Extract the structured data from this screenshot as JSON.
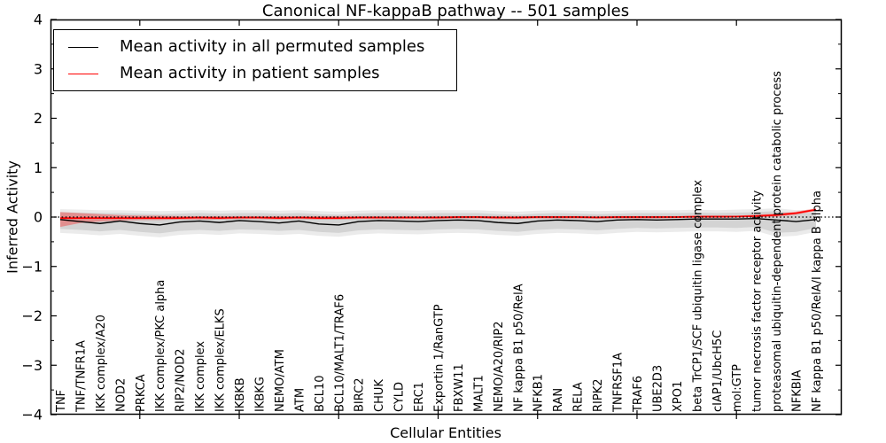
{
  "figure": {
    "title": "Canonical NF-kappaB pathway -- 501 samples",
    "xlabel": "Cellular Entities",
    "ylabel": "Inferred Activity"
  },
  "chart_data": {
    "type": "line",
    "title": "Canonical NF-kappaB pathway -- 501 samples",
    "xlabel": "Cellular Entities",
    "ylabel": "Inferred Activity",
    "ylim": [
      -4,
      4
    ],
    "yticks": [
      -4,
      -3,
      -2,
      -1,
      0,
      1,
      2,
      3,
      4
    ],
    "ytick_labels": [
      "−4",
      "−3",
      "−2",
      "−1",
      "0",
      "1",
      "2",
      "3",
      "4"
    ],
    "ytick_minor_step": 0.5,
    "xtick_indices": [
      4,
      9,
      14,
      19,
      24,
      29,
      34
    ],
    "grid": false,
    "legend_position": "upper left",
    "zero_line": {
      "y": 0,
      "style": "dotted",
      "color": "#000000"
    },
    "categories": [
      "TNF",
      "TNF/TNFR1A",
      "IKK complex/A20",
      "NOD2",
      "PRKCA",
      "IKK complex/PKC alpha",
      "RIP2/NOD2",
      "IKK complex",
      "IKK complex/ELKS",
      "IKBKB",
      "IKBKG",
      "NEMO/ATM",
      "ATM",
      "BCL10",
      "BCL10/MALT1/TRAF6",
      "BIRC2",
      "CHUK",
      "CYLD",
      "ERC1",
      "Exportin 1/RanGTP",
      "FBXW11",
      "MALT1",
      "NEMO/A20/RIP2",
      "NF kappa B1 p50/RelA",
      "NFKB1",
      "RAN",
      "RELA",
      "RIPK2",
      "TNFRSF1A",
      "TRAF6",
      "UBE2D3",
      "XPO1",
      "beta TrCP1/SCF ubiquitin ligase complex",
      "cIAP1/UbcH5C",
      "mol:GTP",
      "tumor necrosis factor receptor activity",
      "proteasomal ubiquitin-dependent protein catabolic process",
      "NFKBIA",
      "NF kappa B1 p50/RelA/I kappa B alpha"
    ],
    "series": [
      {
        "name": "Mean activity in all permuted samples",
        "color": "#000000",
        "values": [
          -0.05,
          -0.09,
          -0.13,
          -0.08,
          -0.13,
          -0.16,
          -0.1,
          -0.08,
          -0.11,
          -0.07,
          -0.09,
          -0.12,
          -0.08,
          -0.14,
          -0.16,
          -0.09,
          -0.07,
          -0.08,
          -0.09,
          -0.07,
          -0.06,
          -0.07,
          -0.11,
          -0.13,
          -0.08,
          -0.06,
          -0.07,
          -0.09,
          -0.06,
          -0.05,
          -0.06,
          -0.05,
          -0.04,
          -0.04,
          -0.04,
          -0.03,
          -0.06,
          -0.09,
          -0.05
        ]
      },
      {
        "name": "Mean activity in patient samples",
        "color": "#ff0000",
        "values": [
          -0.02,
          -0.02,
          -0.02,
          -0.02,
          -0.02,
          -0.02,
          -0.02,
          -0.01,
          -0.02,
          -0.01,
          -0.01,
          -0.02,
          -0.01,
          -0.02,
          -0.02,
          -0.01,
          -0.01,
          -0.01,
          -0.01,
          -0.01,
          0.0,
          0.0,
          -0.01,
          -0.01,
          0.0,
          0.0,
          0.0,
          -0.01,
          0.0,
          0.0,
          0.0,
          0.0,
          0.01,
          0.01,
          0.01,
          0.02,
          0.04,
          0.08,
          0.15
        ]
      }
    ],
    "bands": [
      {
        "name": "permuted-confidence-band-outer",
        "color": "rgba(0,0,0,0.08)",
        "upper": [
          0.16,
          0.15,
          0.14,
          0.14,
          0.13,
          0.12,
          0.13,
          0.14,
          0.13,
          0.14,
          0.14,
          0.13,
          0.14,
          0.12,
          0.11,
          0.13,
          0.14,
          0.14,
          0.13,
          0.14,
          0.14,
          0.14,
          0.12,
          0.11,
          0.13,
          0.14,
          0.13,
          0.12,
          0.13,
          0.14,
          0.14,
          0.14,
          0.15,
          0.14,
          0.15,
          0.16,
          0.18,
          0.14,
          0.15
        ],
        "lower": [
          -0.32,
          -0.34,
          -0.37,
          -0.34,
          -0.38,
          -0.41,
          -0.36,
          -0.34,
          -0.36,
          -0.33,
          -0.34,
          -0.36,
          -0.34,
          -0.38,
          -0.4,
          -0.35,
          -0.33,
          -0.34,
          -0.35,
          -0.33,
          -0.32,
          -0.33,
          -0.36,
          -0.38,
          -0.34,
          -0.32,
          -0.33,
          -0.35,
          -0.32,
          -0.3,
          -0.31,
          -0.3,
          -0.29,
          -0.29,
          -0.3,
          -0.28,
          -0.4,
          -0.38,
          -0.3
        ]
      },
      {
        "name": "permuted-confidence-band",
        "color": "rgba(0,0,0,0.10)",
        "upper": [
          0.1,
          0.09,
          0.08,
          0.08,
          0.07,
          0.06,
          0.07,
          0.08,
          0.07,
          0.08,
          0.08,
          0.07,
          0.08,
          0.06,
          0.05,
          0.07,
          0.08,
          0.08,
          0.07,
          0.08,
          0.08,
          0.08,
          0.06,
          0.05,
          0.07,
          0.08,
          0.07,
          0.06,
          0.07,
          0.08,
          0.08,
          0.08,
          0.09,
          0.08,
          0.09,
          0.1,
          0.12,
          0.08,
          0.09
        ],
        "lower": [
          -0.24,
          -0.26,
          -0.29,
          -0.26,
          -0.3,
          -0.33,
          -0.28,
          -0.26,
          -0.28,
          -0.25,
          -0.26,
          -0.28,
          -0.26,
          -0.3,
          -0.32,
          -0.27,
          -0.25,
          -0.26,
          -0.27,
          -0.25,
          -0.24,
          -0.25,
          -0.28,
          -0.3,
          -0.26,
          -0.24,
          -0.25,
          -0.27,
          -0.24,
          -0.22,
          -0.23,
          -0.22,
          -0.21,
          -0.21,
          -0.22,
          -0.2,
          -0.32,
          -0.3,
          -0.22
        ]
      },
      {
        "name": "patient-confidence-band",
        "color": "rgba(255,0,0,0.32)",
        "upper": [
          0.1,
          0.08,
          0.06,
          0.04,
          0.03,
          0.03,
          0.02,
          0.02,
          0.02,
          0.02,
          0.02,
          0.02,
          0.02,
          0.02,
          0.02,
          0.02,
          0.02,
          0.02,
          0.02,
          0.02,
          0.02,
          0.02,
          0.02,
          0.02,
          0.02,
          0.02,
          0.02,
          0.02,
          0.02,
          0.02,
          0.02,
          0.02,
          0.03,
          0.03,
          0.03,
          0.05,
          0.07,
          0.11,
          0.18
        ],
        "lower": [
          -0.2,
          -0.12,
          -0.09,
          -0.07,
          -0.06,
          -0.06,
          -0.05,
          -0.05,
          -0.05,
          -0.04,
          -0.04,
          -0.05,
          -0.04,
          -0.05,
          -0.05,
          -0.04,
          -0.04,
          -0.04,
          -0.04,
          -0.04,
          -0.03,
          -0.03,
          -0.04,
          -0.04,
          -0.03,
          -0.03,
          -0.03,
          -0.03,
          -0.03,
          -0.03,
          -0.03,
          -0.02,
          -0.02,
          -0.02,
          -0.01,
          0.0,
          0.01,
          0.05,
          0.12
        ]
      }
    ]
  }
}
